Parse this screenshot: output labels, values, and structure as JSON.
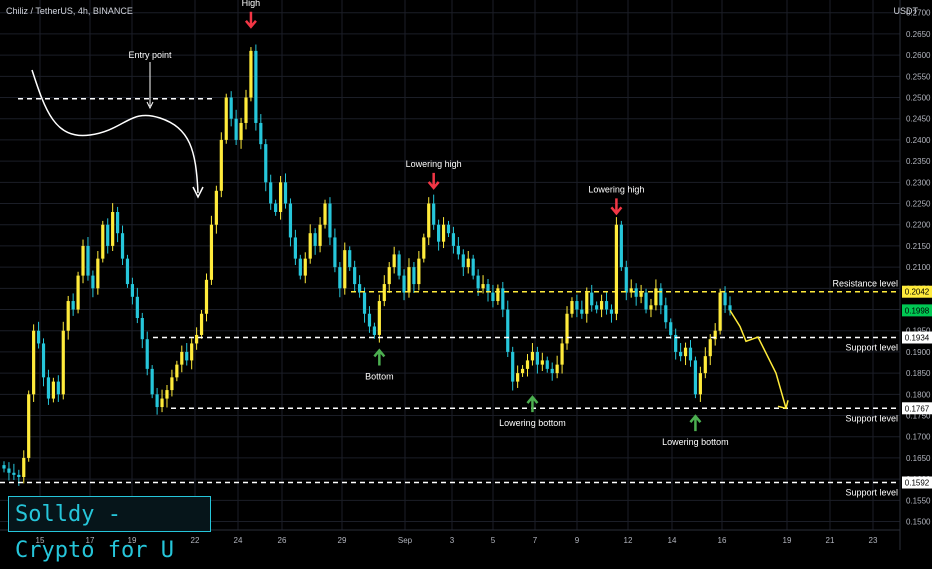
{
  "header": {
    "symbol": "Chiliz / TetherUS, 4h, BINANCE",
    "currency": "USDT"
  },
  "brand": {
    "text": "Solldy - Crypto for U"
  },
  "colors": {
    "up": "#ffeb3b",
    "down": "#26c6da",
    "grid": "#1b1e27",
    "axis_text": "#b2b5be",
    "white": "#ffffff",
    "red_arrow": "#f23645",
    "green_arrow": "#4caf50",
    "price_tag_green": "#00c853"
  },
  "chart_data": {
    "type": "candlestick",
    "y_ticks": [
      "0.2700",
      "0.2650",
      "0.2600",
      "0.2550",
      "0.2500",
      "0.2450",
      "0.2400",
      "0.2350",
      "0.2300",
      "0.2250",
      "0.2200",
      "0.2150",
      "0.2100",
      "0.2050",
      "0.2000",
      "0.1950",
      "0.1900",
      "0.1850",
      "0.1800",
      "0.1750",
      "0.1700",
      "0.1650",
      "0.1600",
      "0.1550",
      "0.1500"
    ],
    "x_ticks": [
      "15",
      "17",
      "19",
      "22",
      "24",
      "26",
      "29",
      "Sep",
      "3",
      "5",
      "7",
      "9",
      "12",
      "14",
      "16",
      "19",
      "21",
      "23"
    ],
    "price_tags": [
      {
        "value": "0.2042",
        "color": "#ffeb3b"
      },
      {
        "value": "0.1998",
        "color": "#00c853"
      },
      {
        "value": "0.1934",
        "color": "#ffffff"
      },
      {
        "value": "0.1767",
        "color": "#ffffff"
      },
      {
        "value": "0.1592",
        "color": "#ffffff"
      }
    ],
    "levels": [
      {
        "label": "Resistance level",
        "value": 0.2042,
        "color": "#ffeb3b",
        "x_start_frac": 0.39
      },
      {
        "label": "Support level",
        "value": 0.1934,
        "color": "#ffffff",
        "x_start_frac": 0.17
      },
      {
        "label": "Support level",
        "value": 0.1767,
        "color": "#ffffff",
        "x_start_frac": 0.19
      },
      {
        "label": "Support level",
        "value": 0.1592,
        "color": "#ffffff",
        "x_start_frac": 0.0
      }
    ],
    "entry_level": {
      "value": 0.2497
    },
    "annotations": [
      {
        "text": "High",
        "kind": "red-down",
        "price": 0.2655,
        "t": 50
      },
      {
        "text": "Lowering high",
        "kind": "red-down",
        "price": 0.2275,
        "t": 87
      },
      {
        "text": "Lowering high",
        "kind": "red-down",
        "price": 0.2215,
        "t": 124
      },
      {
        "text": "Bottom",
        "kind": "green-up",
        "price": 0.192,
        "t": 76
      },
      {
        "text": "Lowering bottom",
        "kind": "green-up",
        "price": 0.181,
        "t": 107
      },
      {
        "text": "Lowering bottom",
        "kind": "green-up",
        "price": 0.1765,
        "t": 140
      },
      {
        "text": "Entry point",
        "kind": "label",
        "price": 0.253,
        "t": 30
      }
    ],
    "candles_close": [
      0.1625,
      0.1615,
      0.161,
      0.1605,
      0.165,
      0.18,
      0.195,
      0.192,
      0.184,
      0.179,
      0.183,
      0.18,
      0.195,
      0.202,
      0.2,
      0.208,
      0.215,
      0.208,
      0.205,
      0.212,
      0.22,
      0.215,
      0.223,
      0.218,
      0.212,
      0.206,
      0.203,
      0.198,
      0.193,
      0.186,
      0.18,
      0.177,
      0.179,
      0.181,
      0.184,
      0.187,
      0.19,
      0.188,
      0.192,
      0.194,
      0.199,
      0.207,
      0.22,
      0.228,
      0.24,
      0.25,
      0.245,
      0.24,
      0.244,
      0.25,
      0.261,
      0.244,
      0.239,
      0.23,
      0.225,
      0.223,
      0.23,
      0.225,
      0.217,
      0.212,
      0.208,
      0.212,
      0.218,
      0.215,
      0.22,
      0.225,
      0.217,
      0.21,
      0.205,
      0.214,
      0.21,
      0.206,
      0.204,
      0.199,
      0.196,
      0.194,
      0.202,
      0.206,
      0.21,
      0.213,
      0.208,
      0.204,
      0.21,
      0.206,
      0.212,
      0.217,
      0.225,
      0.22,
      0.216,
      0.22,
      0.218,
      0.215,
      0.213,
      0.21,
      0.212,
      0.208,
      0.205,
      0.206,
      0.204,
      0.202,
      0.205,
      0.2,
      0.19,
      0.183,
      0.185,
      0.186,
      0.188,
      0.19,
      0.187,
      0.188,
      0.186,
      0.185,
      0.187,
      0.192,
      0.199,
      0.202,
      0.2,
      0.199,
      0.204,
      0.201,
      0.2,
      0.202,
      0.2,
      0.199,
      0.22,
      0.21,
      0.204,
      0.205,
      0.203,
      0.204,
      0.2,
      0.201,
      0.205,
      0.201,
      0.197,
      0.194,
      0.19,
      0.189,
      0.191,
      0.188,
      0.18,
      0.185,
      0.189,
      0.193,
      0.195,
      0.204,
      0.201,
      0.1998
    ],
    "projection": [
      [
        0,
        0.1998
      ],
      [
        1,
        0.196
      ],
      [
        2,
        0.1925
      ],
      [
        3,
        0.1935
      ],
      [
        4,
        0.185
      ],
      [
        5,
        0.1767
      ]
    ]
  }
}
